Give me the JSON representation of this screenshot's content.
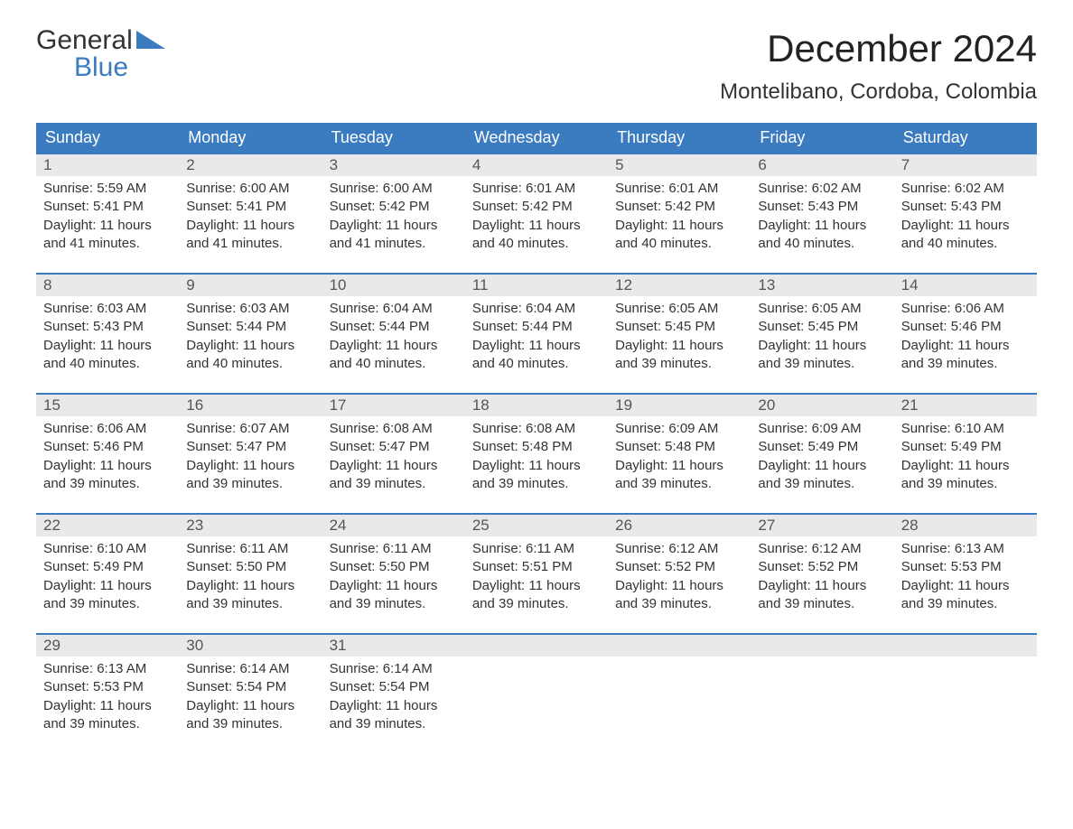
{
  "logo": {
    "word1": "General",
    "word2": "Blue"
  },
  "title": "December 2024",
  "location": "Montelibano, Cordoba, Colombia",
  "colors": {
    "header_bg": "#3b7bbf",
    "header_text": "#ffffff",
    "daynum_bg": "#e9e9e9",
    "border": "#3b7bbf",
    "body_text": "#333333",
    "logo_blue": "#3b7bbf",
    "background": "#ffffff"
  },
  "weekdays": [
    "Sunday",
    "Monday",
    "Tuesday",
    "Wednesday",
    "Thursday",
    "Friday",
    "Saturday"
  ],
  "weeks": [
    [
      {
        "n": "1",
        "sunrise": "Sunrise: 5:59 AM",
        "sunset": "Sunset: 5:41 PM",
        "d1": "Daylight: 11 hours",
        "d2": "and 41 minutes."
      },
      {
        "n": "2",
        "sunrise": "Sunrise: 6:00 AM",
        "sunset": "Sunset: 5:41 PM",
        "d1": "Daylight: 11 hours",
        "d2": "and 41 minutes."
      },
      {
        "n": "3",
        "sunrise": "Sunrise: 6:00 AM",
        "sunset": "Sunset: 5:42 PM",
        "d1": "Daylight: 11 hours",
        "d2": "and 41 minutes."
      },
      {
        "n": "4",
        "sunrise": "Sunrise: 6:01 AM",
        "sunset": "Sunset: 5:42 PM",
        "d1": "Daylight: 11 hours",
        "d2": "and 40 minutes."
      },
      {
        "n": "5",
        "sunrise": "Sunrise: 6:01 AM",
        "sunset": "Sunset: 5:42 PM",
        "d1": "Daylight: 11 hours",
        "d2": "and 40 minutes."
      },
      {
        "n": "6",
        "sunrise": "Sunrise: 6:02 AM",
        "sunset": "Sunset: 5:43 PM",
        "d1": "Daylight: 11 hours",
        "d2": "and 40 minutes."
      },
      {
        "n": "7",
        "sunrise": "Sunrise: 6:02 AM",
        "sunset": "Sunset: 5:43 PM",
        "d1": "Daylight: 11 hours",
        "d2": "and 40 minutes."
      }
    ],
    [
      {
        "n": "8",
        "sunrise": "Sunrise: 6:03 AM",
        "sunset": "Sunset: 5:43 PM",
        "d1": "Daylight: 11 hours",
        "d2": "and 40 minutes."
      },
      {
        "n": "9",
        "sunrise": "Sunrise: 6:03 AM",
        "sunset": "Sunset: 5:44 PM",
        "d1": "Daylight: 11 hours",
        "d2": "and 40 minutes."
      },
      {
        "n": "10",
        "sunrise": "Sunrise: 6:04 AM",
        "sunset": "Sunset: 5:44 PM",
        "d1": "Daylight: 11 hours",
        "d2": "and 40 minutes."
      },
      {
        "n": "11",
        "sunrise": "Sunrise: 6:04 AM",
        "sunset": "Sunset: 5:44 PM",
        "d1": "Daylight: 11 hours",
        "d2": "and 40 minutes."
      },
      {
        "n": "12",
        "sunrise": "Sunrise: 6:05 AM",
        "sunset": "Sunset: 5:45 PM",
        "d1": "Daylight: 11 hours",
        "d2": "and 39 minutes."
      },
      {
        "n": "13",
        "sunrise": "Sunrise: 6:05 AM",
        "sunset": "Sunset: 5:45 PM",
        "d1": "Daylight: 11 hours",
        "d2": "and 39 minutes."
      },
      {
        "n": "14",
        "sunrise": "Sunrise: 6:06 AM",
        "sunset": "Sunset: 5:46 PM",
        "d1": "Daylight: 11 hours",
        "d2": "and 39 minutes."
      }
    ],
    [
      {
        "n": "15",
        "sunrise": "Sunrise: 6:06 AM",
        "sunset": "Sunset: 5:46 PM",
        "d1": "Daylight: 11 hours",
        "d2": "and 39 minutes."
      },
      {
        "n": "16",
        "sunrise": "Sunrise: 6:07 AM",
        "sunset": "Sunset: 5:47 PM",
        "d1": "Daylight: 11 hours",
        "d2": "and 39 minutes."
      },
      {
        "n": "17",
        "sunrise": "Sunrise: 6:08 AM",
        "sunset": "Sunset: 5:47 PM",
        "d1": "Daylight: 11 hours",
        "d2": "and 39 minutes."
      },
      {
        "n": "18",
        "sunrise": "Sunrise: 6:08 AM",
        "sunset": "Sunset: 5:48 PM",
        "d1": "Daylight: 11 hours",
        "d2": "and 39 minutes."
      },
      {
        "n": "19",
        "sunrise": "Sunrise: 6:09 AM",
        "sunset": "Sunset: 5:48 PM",
        "d1": "Daylight: 11 hours",
        "d2": "and 39 minutes."
      },
      {
        "n": "20",
        "sunrise": "Sunrise: 6:09 AM",
        "sunset": "Sunset: 5:49 PM",
        "d1": "Daylight: 11 hours",
        "d2": "and 39 minutes."
      },
      {
        "n": "21",
        "sunrise": "Sunrise: 6:10 AM",
        "sunset": "Sunset: 5:49 PM",
        "d1": "Daylight: 11 hours",
        "d2": "and 39 minutes."
      }
    ],
    [
      {
        "n": "22",
        "sunrise": "Sunrise: 6:10 AM",
        "sunset": "Sunset: 5:49 PM",
        "d1": "Daylight: 11 hours",
        "d2": "and 39 minutes."
      },
      {
        "n": "23",
        "sunrise": "Sunrise: 6:11 AM",
        "sunset": "Sunset: 5:50 PM",
        "d1": "Daylight: 11 hours",
        "d2": "and 39 minutes."
      },
      {
        "n": "24",
        "sunrise": "Sunrise: 6:11 AM",
        "sunset": "Sunset: 5:50 PM",
        "d1": "Daylight: 11 hours",
        "d2": "and 39 minutes."
      },
      {
        "n": "25",
        "sunrise": "Sunrise: 6:11 AM",
        "sunset": "Sunset: 5:51 PM",
        "d1": "Daylight: 11 hours",
        "d2": "and 39 minutes."
      },
      {
        "n": "26",
        "sunrise": "Sunrise: 6:12 AM",
        "sunset": "Sunset: 5:52 PM",
        "d1": "Daylight: 11 hours",
        "d2": "and 39 minutes."
      },
      {
        "n": "27",
        "sunrise": "Sunrise: 6:12 AM",
        "sunset": "Sunset: 5:52 PM",
        "d1": "Daylight: 11 hours",
        "d2": "and 39 minutes."
      },
      {
        "n": "28",
        "sunrise": "Sunrise: 6:13 AM",
        "sunset": "Sunset: 5:53 PM",
        "d1": "Daylight: 11 hours",
        "d2": "and 39 minutes."
      }
    ],
    [
      {
        "n": "29",
        "sunrise": "Sunrise: 6:13 AM",
        "sunset": "Sunset: 5:53 PM",
        "d1": "Daylight: 11 hours",
        "d2": "and 39 minutes."
      },
      {
        "n": "30",
        "sunrise": "Sunrise: 6:14 AM",
        "sunset": "Sunset: 5:54 PM",
        "d1": "Daylight: 11 hours",
        "d2": "and 39 minutes."
      },
      {
        "n": "31",
        "sunrise": "Sunrise: 6:14 AM",
        "sunset": "Sunset: 5:54 PM",
        "d1": "Daylight: 11 hours",
        "d2": "and 39 minutes."
      },
      null,
      null,
      null,
      null
    ]
  ]
}
